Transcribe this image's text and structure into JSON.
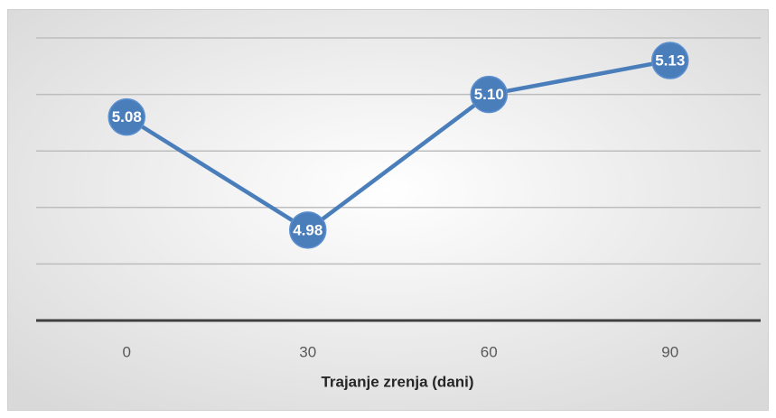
{
  "chart_data": {
    "type": "line",
    "x_label": "Trajanje zrenja (dani)",
    "categories": [
      "0",
      "30",
      "60",
      "90"
    ],
    "series": [
      {
        "color": "#4a7ebb",
        "values": [
          5.08,
          4.98,
          5.1,
          5.13
        ],
        "value_labels": [
          "5.08",
          "4.98",
          "5.10",
          "5.13"
        ]
      }
    ],
    "ylim": [
      4.9,
      5.15
    ],
    "yticks": [
      4.9,
      4.95,
      5.0,
      5.05,
      5.1,
      5.15
    ],
    "grid": true
  }
}
